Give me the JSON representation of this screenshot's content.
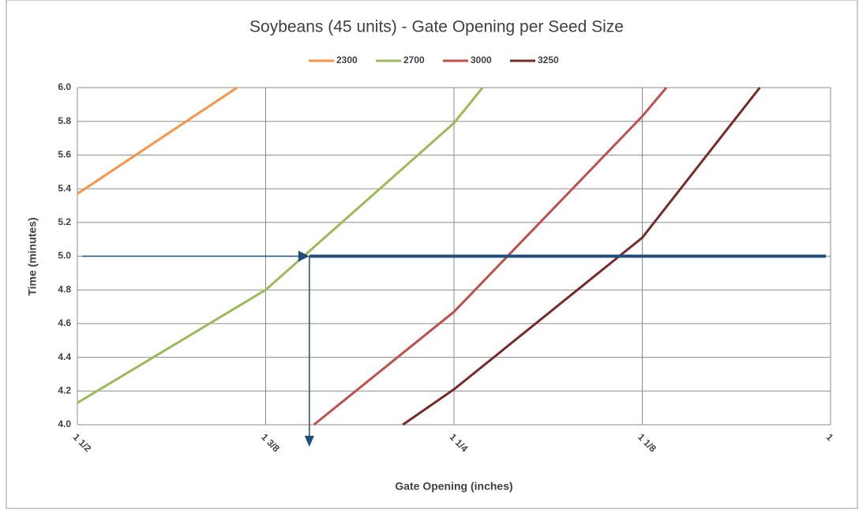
{
  "chart_data": {
    "type": "line",
    "title": "Soybeans (45 units) - Gate Opening per Seed Size",
    "xlabel": "Gate Opening (inches)",
    "ylabel": "Time (minutes)",
    "xlim": [
      1.5,
      1
    ],
    "xticks": [
      {
        "value": 1.5,
        "label": "1  1/2"
      },
      {
        "value": 1.375,
        "label": "1  3/8"
      },
      {
        "value": 1.25,
        "label": "1  1/4"
      },
      {
        "value": 1.125,
        "label": "1  1/8"
      },
      1
    ],
    "ylim": [
      4,
      6
    ],
    "yticks": [
      {
        "value": 4,
        "label": "4.0"
      },
      4.2,
      4.4,
      4.6,
      4.8,
      {
        "value": 5,
        "label": "5.0"
      },
      5.2,
      5.4,
      5.6,
      5.8,
      {
        "value": 6,
        "label": "6.0"
      }
    ],
    "grid": true,
    "legend": "top",
    "series": [
      {
        "name": "2300",
        "color": "#f79646",
        "x": [
          1.5,
          1.394
        ],
        "values": [
          5.37,
          6.0
        ]
      },
      {
        "name": "2700",
        "color": "#9bbb59",
        "x": [
          1.5,
          1.375,
          1.25,
          1.231
        ],
        "values": [
          4.13,
          4.8,
          5.79,
          6.0
        ]
      },
      {
        "name": "3000",
        "color": "#c0504d",
        "x": [
          1.343,
          1.25,
          1.125,
          1.109
        ],
        "values": [
          4.0,
          4.67,
          5.83,
          6.0
        ]
      },
      {
        "name": "3250",
        "color": "#772c2a",
        "x": [
          1.284,
          1.25,
          1.125,
          1.047
        ],
        "values": [
          4.0,
          4.21,
          5.11,
          6.0
        ]
      }
    ],
    "annotation": {
      "x": 1.346,
      "y": 5.0,
      "color": "#1f4e79"
    }
  }
}
